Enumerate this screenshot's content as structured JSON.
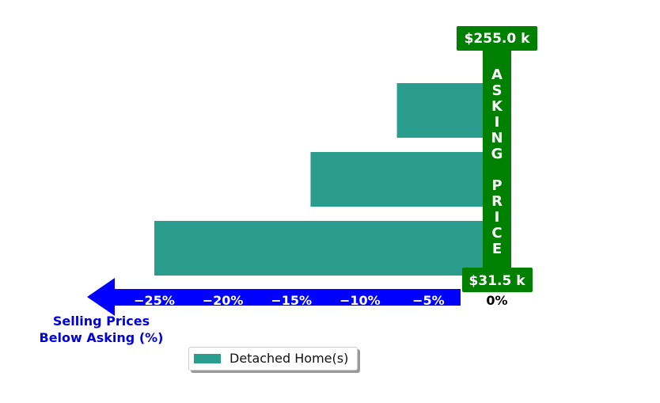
{
  "chart_data": {
    "type": "bar",
    "orientation": "horizontal",
    "categories": [
      "",
      "",
      ""
    ],
    "series": [
      {
        "name": "Detached Home(s)",
        "values": [
          -7.3,
          -13.6,
          -25.0
        ],
        "color": "#2a9d8f"
      }
    ],
    "xlim": [
      -25.0,
      0.0
    ],
    "x_ticks": [
      {
        "value": -25,
        "label": "−25%"
      },
      {
        "value": -20,
        "label": "−20%"
      },
      {
        "value": -15,
        "label": "−15%"
      },
      {
        "value": -10,
        "label": "−10%"
      },
      {
        "value": -5,
        "label": "−5%"
      },
      {
        "value": 0,
        "label": "0%"
      }
    ],
    "xlabel": "Selling Prices\nBelow Asking (%)",
    "asking_price_label": "ASKING PRICE",
    "asking_price_top": "$255.0 k",
    "asking_price_bottom": "$31.5 k",
    "colors": {
      "bar": "#2a9d8f",
      "arrow": "#0000ff",
      "asking": "#008000",
      "xlabel": "#0000dd"
    },
    "legend": {
      "placement": "bottom-left",
      "entries": [
        "Detached Home(s)"
      ]
    }
  }
}
